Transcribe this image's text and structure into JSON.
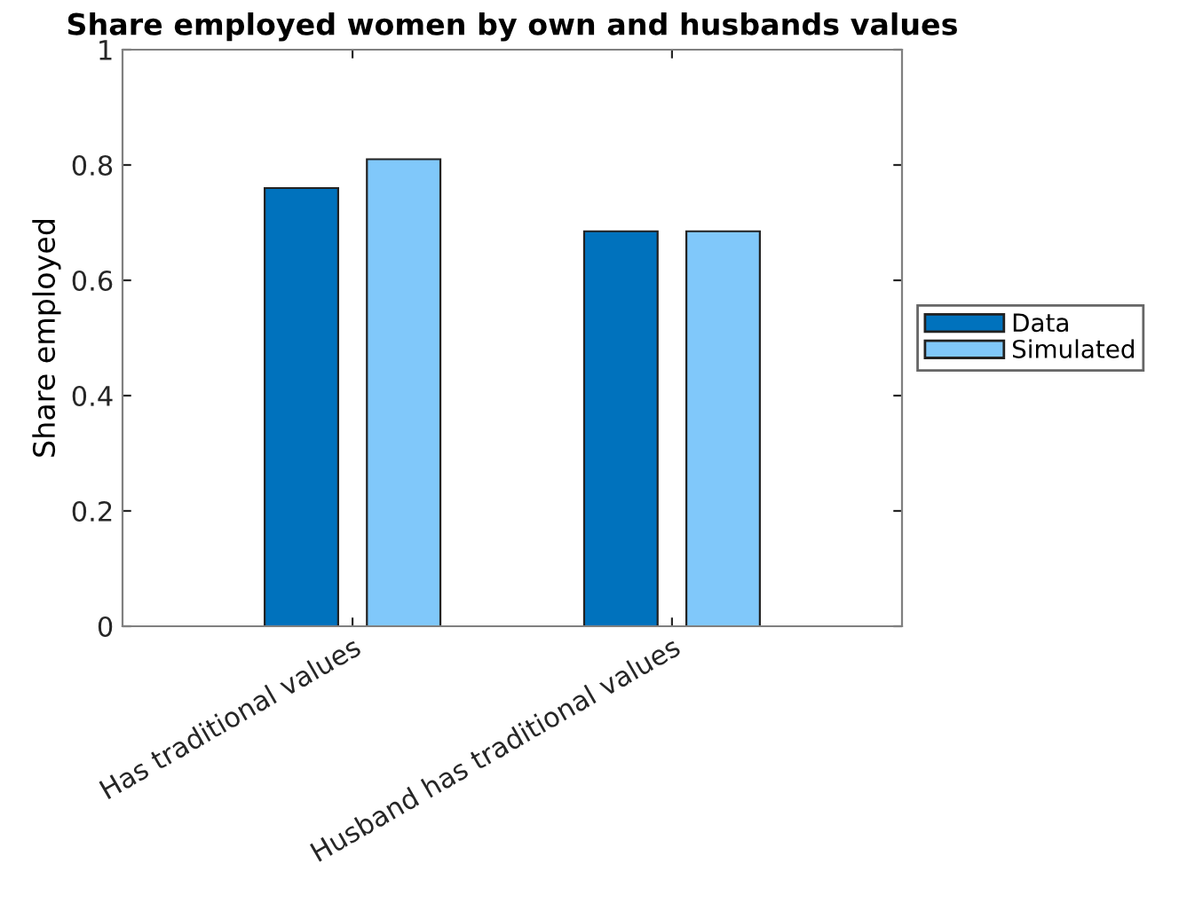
{
  "chart_data": {
    "type": "bar",
    "title": "Share employed women by own and husbands values",
    "ylabel": "Share employed",
    "categories": [
      "Has traditional values",
      "Husband has traditional values"
    ],
    "series": [
      {
        "name": "Data",
        "color": "#0072bd",
        "values": [
          0.76,
          0.685
        ]
      },
      {
        "name": "Simulated",
        "color": "#80c8fa",
        "values": [
          0.81,
          0.685
        ]
      }
    ],
    "ylim": [
      0,
      1
    ],
    "yticks": [
      0,
      0.2,
      0.4,
      0.6,
      0.8,
      1
    ],
    "grid": false,
    "legend": "right"
  }
}
